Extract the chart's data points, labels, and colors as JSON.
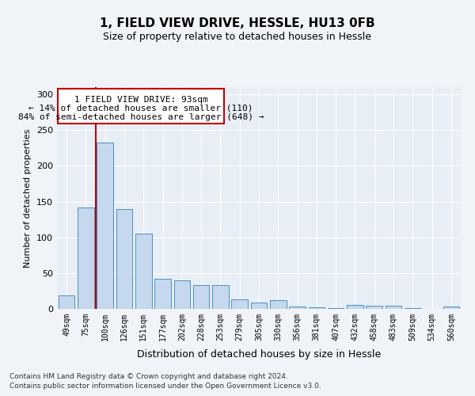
{
  "title": "1, FIELD VIEW DRIVE, HESSLE, HU13 0FB",
  "subtitle": "Size of property relative to detached houses in Hessle",
  "xlabel": "Distribution of detached houses by size in Hessle",
  "ylabel": "Number of detached properties",
  "categories": [
    "49sqm",
    "75sqm",
    "100sqm",
    "126sqm",
    "151sqm",
    "177sqm",
    "202sqm",
    "228sqm",
    "253sqm",
    "279sqm",
    "305sqm",
    "330sqm",
    "356sqm",
    "381sqm",
    "407sqm",
    "432sqm",
    "458sqm",
    "483sqm",
    "509sqm",
    "534sqm",
    "560sqm"
  ],
  "values": [
    19,
    142,
    233,
    140,
    105,
    42,
    40,
    33,
    33,
    13,
    9,
    12,
    3,
    2,
    1,
    5,
    4,
    4,
    1,
    0,
    3
  ],
  "bar_color": "#c5d8ed",
  "bar_edge_color": "#4a90c4",
  "annotation_box_color": "#c00000",
  "annotation_line_color": "#c00000",
  "annotation_text_line1": "1 FIELD VIEW DRIVE: 93sqm",
  "annotation_text_line2": "← 14% of detached houses are smaller (110)",
  "annotation_text_line3": "84% of semi-detached houses are larger (648) →",
  "bg_color": "#e8eef5",
  "grid_color": "#ffffff",
  "fig_bg_color": "#f0f4f8",
  "ylim": [
    0,
    310
  ],
  "yticks": [
    0,
    50,
    100,
    150,
    200,
    250,
    300
  ],
  "footer_line1": "Contains HM Land Registry data © Crown copyright and database right 2024.",
  "footer_line2": "Contains public sector information licensed under the Open Government Licence v3.0."
}
